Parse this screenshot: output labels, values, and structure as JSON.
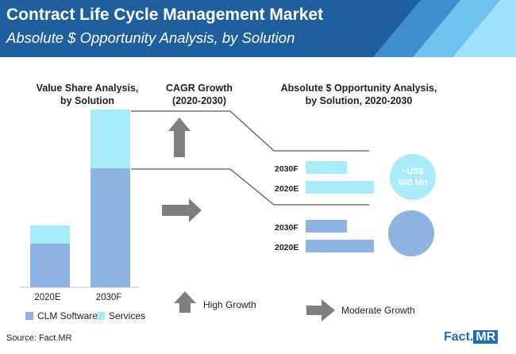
{
  "header": {
    "title": "Contract Life Cycle Management Market",
    "subtitle": "Absolute $ Opportunity Analysis, by Solution"
  },
  "sections": {
    "value_share": "Value Share Analysis,\nby Solution",
    "cagr": "CAGR Growth\n(2020-2030)",
    "opportunity": "Absolute $ Opportunity Analysis,\nby Solution, 2020-2030"
  },
  "legend": {
    "clm": "CLM Software",
    "services": "Services",
    "high_growth": "High Growth",
    "moderate_growth": "Moderate Growth"
  },
  "bubble": {
    "top_line1": "~US$",
    "top_line2": "600 Mn"
  },
  "source": "Source: Fact.MR",
  "logo": {
    "brand": "Fact",
    "suffix": "MR"
  },
  "colors": {
    "clm": "#8db3e2",
    "services": "#a8ecf7",
    "banner_dark": "#1f5f9e",
    "arrow": "#7f7f7f"
  },
  "chart_data": [
    {
      "type": "bar",
      "title": "Value Share Analysis, by Solution",
      "stacked": true,
      "categories": [
        "2020E",
        "2030F"
      ],
      "series": [
        {
          "name": "CLM Software",
          "values": [
            55,
            150
          ]
        },
        {
          "name": "Services",
          "values": [
            23,
            74
          ]
        }
      ]
    },
    {
      "type": "bar",
      "orientation": "horizontal",
      "title": "Absolute $ Opportunity Analysis, by Solution, 2020-2030",
      "groups": [
        {
          "segment": "Services",
          "categories": [
            "2030F",
            "2020E"
          ],
          "values": [
            52,
            86
          ],
          "growth": "Moderate Growth",
          "opportunity": "~US$ 600 Mn"
        },
        {
          "segment": "CLM Software",
          "categories": [
            "2030F",
            "2020E"
          ],
          "values": [
            52,
            86
          ],
          "growth": "Moderate Growth"
        }
      ]
    }
  ]
}
